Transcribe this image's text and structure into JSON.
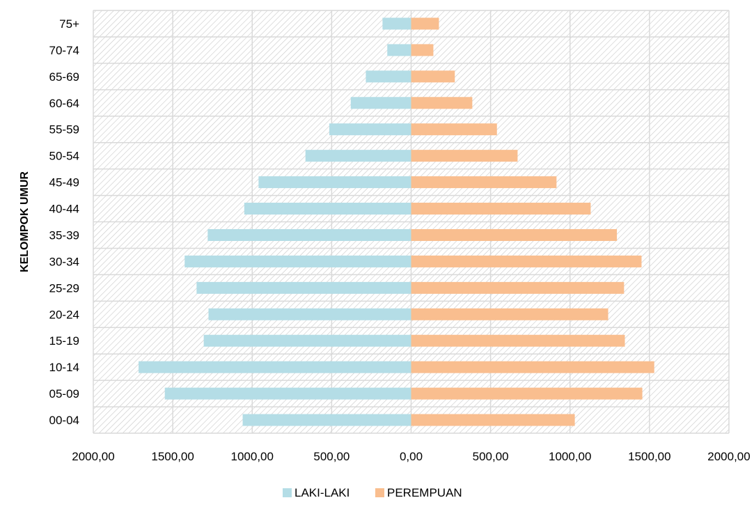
{
  "chart_data": {
    "type": "bar",
    "orientation": "horizontal-population-pyramid",
    "title": "",
    "ylabel": "KELOMPOK UMUR",
    "xlabel": "",
    "categories": [
      "00-04",
      "05-09",
      "10-14",
      "15-19",
      "20-24",
      "25-29",
      "30-34",
      "35-39",
      "40-44",
      "45-49",
      "50-54",
      "55-59",
      "60-64",
      "65-69",
      "70-74",
      "75+"
    ],
    "series": [
      {
        "name": "LAKI-LAKI",
        "color": "#b4dde6",
        "side": "left",
        "values": [
          1060,
          1550,
          1715,
          1305,
          1275,
          1350,
          1425,
          1280,
          1050,
          960,
          665,
          515,
          380,
          285,
          150,
          180
        ]
      },
      {
        "name": "PEREMPUAN",
        "color": "#f9be8f",
        "side": "right",
        "values": [
          1030,
          1455,
          1530,
          1345,
          1240,
          1340,
          1450,
          1295,
          1130,
          915,
          670,
          540,
          385,
          275,
          140,
          175
        ]
      }
    ],
    "xlim": [
      -2000,
      2000
    ],
    "x_tick_labels": [
      "2000,00",
      "1500,00",
      "1000,00",
      "500,00",
      "0,00",
      "500,00",
      "1000,00",
      "1500,00",
      "2000,00"
    ],
    "x_tick_values": [
      -2000,
      -1500,
      -1000,
      -500,
      0,
      500,
      1000,
      1500,
      2000
    ],
    "grid": true,
    "legend_position": "bottom"
  }
}
